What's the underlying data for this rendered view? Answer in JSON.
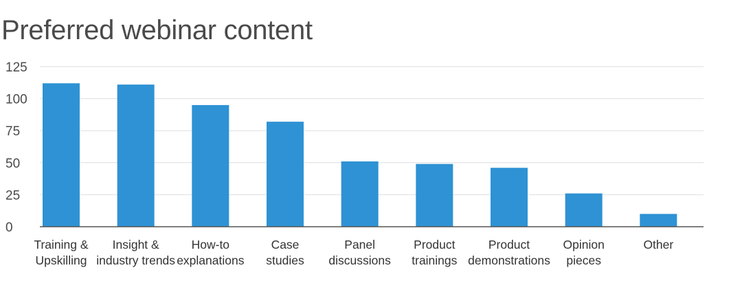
{
  "title": "Preferred webinar content",
  "colors": {
    "bar": "#2e92d4",
    "grid": "#dedede",
    "axis": "#555555"
  },
  "chart_data": {
    "type": "bar",
    "title": "Preferred webinar content",
    "xlabel": "",
    "ylabel": "",
    "ylim": [
      0,
      125
    ],
    "yticks": [
      0,
      25,
      50,
      75,
      100,
      125
    ],
    "grid": true,
    "categories": [
      [
        "Training &",
        "Upskilling"
      ],
      [
        "Insight &",
        "industry trends"
      ],
      [
        "How-to",
        "explanations"
      ],
      [
        "Case",
        "studies"
      ],
      [
        "Panel",
        "discussions"
      ],
      [
        "Product",
        "trainings"
      ],
      [
        "Product",
        "demonstrations"
      ],
      [
        "Opinion",
        "pieces"
      ],
      [
        "Other"
      ]
    ],
    "values": [
      112,
      111,
      95,
      82,
      51,
      49,
      46,
      26,
      10
    ]
  }
}
